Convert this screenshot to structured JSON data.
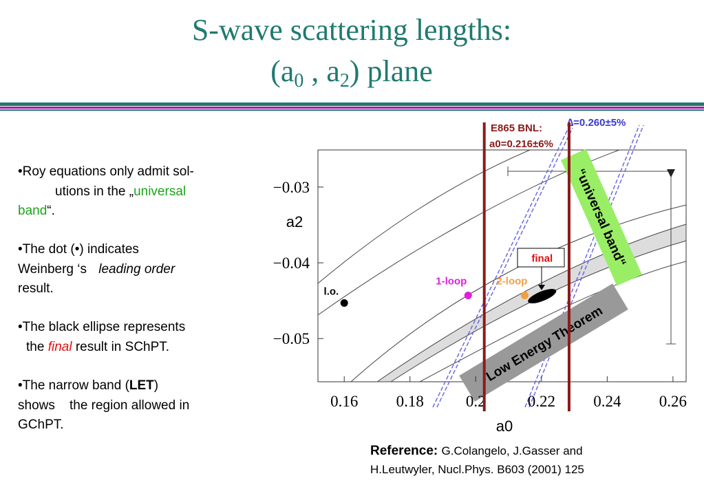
{
  "title": {
    "line1": "S-wave scattering lengths:",
    "line2": [
      "(a",
      "0",
      " , a",
      "2",
      ") plane"
    ]
  },
  "bullets": [
    [
      [
        "•Roy equations only admit sol-"
      ],
      [
        "utions in the „",
        "universal"
      ],
      [
        "band",
        "“."
      ]
    ],
    [
      [
        "•The dot (•) indicates"
      ],
      [
        "Weinberg ‘s ",
        "leading order"
      ],
      [
        "result."
      ]
    ],
    [
      [
        "•The black ellipse represents"
      ],
      [
        "the ",
        "final",
        " result in SChPT."
      ]
    ],
    [
      [
        "•The narrow band (",
        "LET",
        ")"
      ],
      [
        "shows    the region allowed in"
      ],
      [
        "GChPT."
      ]
    ]
  ],
  "reference": {
    "label": "Reference:",
    "lines": [
      "G.Colangelo, J.Gasser and",
      "H.Leutwyler, Nucl.Phys. B603 (2001) 125"
    ]
  },
  "chart_data": {
    "type": "scatter",
    "x_label": "a0",
    "y_label": "a2",
    "xlim": [
      0.152,
      0.264
    ],
    "ylim": [
      -0.0557,
      -0.0251
    ],
    "xticks": [
      0.16,
      0.18,
      0.2,
      0.22,
      0.24,
      0.26
    ],
    "yticks": [
      {
        "value": -0.05,
        "label": "−0.05"
      },
      {
        "value": -0.04,
        "label": "−0.04"
      },
      {
        "value": -0.03,
        "label": "−0.03"
      }
    ],
    "series": [
      {
        "name": "l.o.",
        "color": "#000000",
        "x": [
          0.16
        ],
        "values": [
          -0.0453
        ]
      },
      {
        "name": "1-loop",
        "color": "#e020e0",
        "x": [
          0.1977
        ],
        "values": [
          -0.0443
        ]
      },
      {
        "name": "2-loop",
        "color": "#f0a040",
        "x": [
          0.2149
        ],
        "values": [
          -0.0443
        ]
      },
      {
        "name": "final",
        "color": "#000000",
        "x": [
          0.2202
        ],
        "values": [
          -0.0444
        ]
      }
    ],
    "e865": {
      "label": [
        "E865 BNL:",
        "a0=0.216±6%"
      ],
      "x": [
        0.2026,
        0.2284
      ],
      "color": "#8b1a1a"
    },
    "delta_label": "∆=0.260±5%",
    "universal_band_label": "“universal band“",
    "let_label": "Low Energy Theorem"
  }
}
